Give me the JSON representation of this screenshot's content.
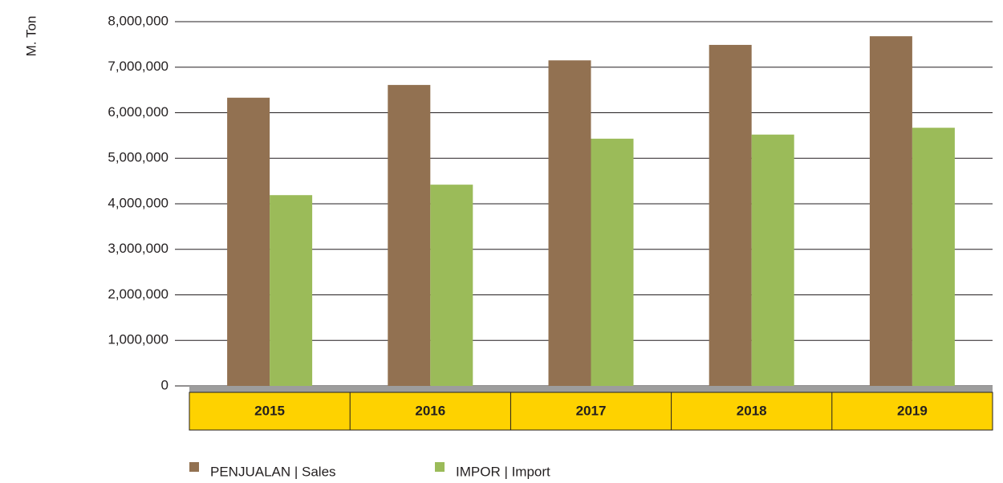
{
  "chart_data": {
    "type": "bar",
    "y_label": "M. Ton",
    "categories": [
      "2015",
      "2016",
      "2017",
      "2018",
      "2019"
    ],
    "series": [
      {
        "name": "PENJUALAN | Sales",
        "color": "#927151",
        "values": [
          6330000,
          6610000,
          7150000,
          7490000,
          7680000
        ]
      },
      {
        "name": "IMPOR | Import",
        "color": "#9bbb59",
        "values": [
          4190000,
          4420000,
          5430000,
          5520000,
          5670000
        ]
      }
    ],
    "ylim": [
      0,
      8000000
    ],
    "yticks": [
      0,
      {
        "value": 1000000,
        "label": "1,000,000"
      },
      {
        "value": 2000000,
        "label": "2,000,000"
      },
      {
        "value": 3000000,
        "label": "3,000,000"
      },
      {
        "value": 4000000,
        "label": "4,000,000"
      },
      {
        "value": 5000000,
        "label": "5,000,000"
      },
      {
        "value": 6000000,
        "label": "6,000,000"
      },
      {
        "value": 7000000,
        "label": "7,000,000"
      },
      {
        "value": 8000000,
        "label": "8,000,000"
      }
    ],
    "grid": true
  }
}
